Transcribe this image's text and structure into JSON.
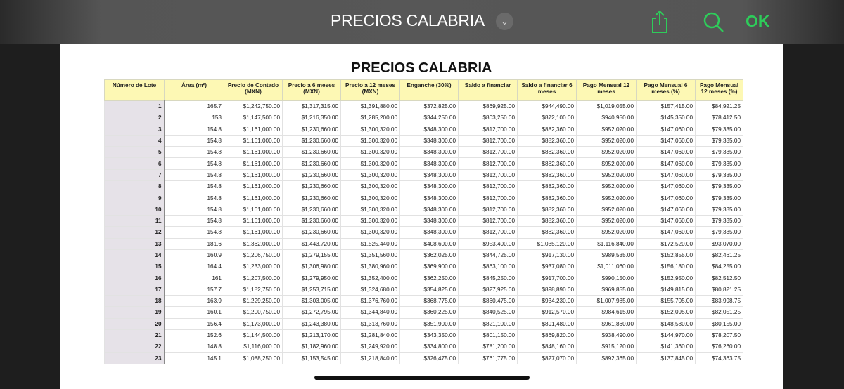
{
  "app_bar": {
    "title": "PRECIOS CALABRIA",
    "ok_label": "OK",
    "accent": "#2ecc5a"
  },
  "document": {
    "title": "PRECIOS CALABRIA",
    "headers": [
      "Número de Lote",
      "Área (m²)",
      "Precio de Contado (MXN)",
      "Precio a 6 meses (MXN)",
      "Precio a 12 meses (MXN)",
      "Enganche (30%)",
      "Saldo a financiar",
      "Saldo a financiar 6 meses",
      "Pago Mensual 12 meses",
      "Pago Mensual 6 meses (%)",
      "Pago Mensual 12 meses (%)"
    ],
    "rows": [
      [
        "1",
        "165.7",
        "$1,242,750.00",
        "$1,317,315.00",
        "$1,391,880.00",
        "$372,825.00",
        "$869,925.00",
        "$944,490.00",
        "$1,019,055.00",
        "$157,415.00",
        "$84,921.25"
      ],
      [
        "2",
        "153",
        "$1,147,500.00",
        "$1,216,350.00",
        "$1,285,200.00",
        "$344,250.00",
        "$803,250.00",
        "$872,100.00",
        "$940,950.00",
        "$145,350.00",
        "$78,412.50"
      ],
      [
        "3",
        "154.8",
        "$1,161,000.00",
        "$1,230,660.00",
        "$1,300,320.00",
        "$348,300.00",
        "$812,700.00",
        "$882,360.00",
        "$952,020.00",
        "$147,060.00",
        "$79,335.00"
      ],
      [
        "4",
        "154.8",
        "$1,161,000.00",
        "$1,230,660.00",
        "$1,300,320.00",
        "$348,300.00",
        "$812,700.00",
        "$882,360.00",
        "$952,020.00",
        "$147,060.00",
        "$79,335.00"
      ],
      [
        "5",
        "154.8",
        "$1,161,000.00",
        "$1,230,660.00",
        "$1,300,320.00",
        "$348,300.00",
        "$812,700.00",
        "$882,360.00",
        "$952,020.00",
        "$147,060.00",
        "$79,335.00"
      ],
      [
        "6",
        "154.8",
        "$1,161,000.00",
        "$1,230,660.00",
        "$1,300,320.00",
        "$348,300.00",
        "$812,700.00",
        "$882,360.00",
        "$952,020.00",
        "$147,060.00",
        "$79,335.00"
      ],
      [
        "7",
        "154.8",
        "$1,161,000.00",
        "$1,230,660.00",
        "$1,300,320.00",
        "$348,300.00",
        "$812,700.00",
        "$882,360.00",
        "$952,020.00",
        "$147,060.00",
        "$79,335.00"
      ],
      [
        "8",
        "154.8",
        "$1,161,000.00",
        "$1,230,660.00",
        "$1,300,320.00",
        "$348,300.00",
        "$812,700.00",
        "$882,360.00",
        "$952,020.00",
        "$147,060.00",
        "$79,335.00"
      ],
      [
        "9",
        "154.8",
        "$1,161,000.00",
        "$1,230,660.00",
        "$1,300,320.00",
        "$348,300.00",
        "$812,700.00",
        "$882,360.00",
        "$952,020.00",
        "$147,060.00",
        "$79,335.00"
      ],
      [
        "10",
        "154.8",
        "$1,161,000.00",
        "$1,230,660.00",
        "$1,300,320.00",
        "$348,300.00",
        "$812,700.00",
        "$882,360.00",
        "$952,020.00",
        "$147,060.00",
        "$79,335.00"
      ],
      [
        "11",
        "154.8",
        "$1,161,000.00",
        "$1,230,660.00",
        "$1,300,320.00",
        "$348,300.00",
        "$812,700.00",
        "$882,360.00",
        "$952,020.00",
        "$147,060.00",
        "$79,335.00"
      ],
      [
        "12",
        "154.8",
        "$1,161,000.00",
        "$1,230,660.00",
        "$1,300,320.00",
        "$348,300.00",
        "$812,700.00",
        "$882,360.00",
        "$952,020.00",
        "$147,060.00",
        "$79,335.00"
      ],
      [
        "13",
        "181.6",
        "$1,362,000.00",
        "$1,443,720.00",
        "$1,525,440.00",
        "$408,600.00",
        "$953,400.00",
        "$1,035,120.00",
        "$1,116,840.00",
        "$172,520.00",
        "$93,070.00"
      ],
      [
        "14",
        "160.9",
        "$1,206,750.00",
        "$1,279,155.00",
        "$1,351,560.00",
        "$362,025.00",
        "$844,725.00",
        "$917,130.00",
        "$989,535.00",
        "$152,855.00",
        "$82,461.25"
      ],
      [
        "15",
        "164.4",
        "$1,233,000.00",
        "$1,306,980.00",
        "$1,380,960.00",
        "$369,900.00",
        "$863,100.00",
        "$937,080.00",
        "$1,011,060.00",
        "$156,180.00",
        "$84,255.00"
      ],
      [
        "16",
        "161",
        "$1,207,500.00",
        "$1,279,950.00",
        "$1,352,400.00",
        "$362,250.00",
        "$845,250.00",
        "$917,700.00",
        "$990,150.00",
        "$152,950.00",
        "$82,512.50"
      ],
      [
        "17",
        "157.7",
        "$1,182,750.00",
        "$1,253,715.00",
        "$1,324,680.00",
        "$354,825.00",
        "$827,925.00",
        "$898,890.00",
        "$969,855.00",
        "$149,815.00",
        "$80,821.25"
      ],
      [
        "18",
        "163.9",
        "$1,229,250.00",
        "$1,303,005.00",
        "$1,376,760.00",
        "$368,775.00",
        "$860,475.00",
        "$934,230.00",
        "$1,007,985.00",
        "$155,705.00",
        "$83,998.75"
      ],
      [
        "19",
        "160.1",
        "$1,200,750.00",
        "$1,272,795.00",
        "$1,344,840.00",
        "$360,225.00",
        "$840,525.00",
        "$912,570.00",
        "$984,615.00",
        "$152,095.00",
        "$82,051.25"
      ],
      [
        "20",
        "156.4",
        "$1,173,000.00",
        "$1,243,380.00",
        "$1,313,760.00",
        "$351,900.00",
        "$821,100.00",
        "$891,480.00",
        "$961,860.00",
        "$148,580.00",
        "$80,155.00"
      ],
      [
        "21",
        "152.6",
        "$1,144,500.00",
        "$1,213,170.00",
        "$1,281,840.00",
        "$343,350.00",
        "$801,150.00",
        "$869,820.00",
        "$938,490.00",
        "$144,970.00",
        "$78,207.50"
      ],
      [
        "22",
        "148.8",
        "$1,116,000.00",
        "$1,182,960.00",
        "$1,249,920.00",
        "$334,800.00",
        "$781,200.00",
        "$848,160.00",
        "$915,120.00",
        "$141,360.00",
        "$76,260.00"
      ],
      [
        "23",
        "145.1",
        "$1,088,250.00",
        "$1,153,545.00",
        "$1,218,840.00",
        "$326,475.00",
        "$761,775.00",
        "$827,070.00",
        "$892,365.00",
        "$137,845.00",
        "$74,363.75"
      ]
    ]
  }
}
